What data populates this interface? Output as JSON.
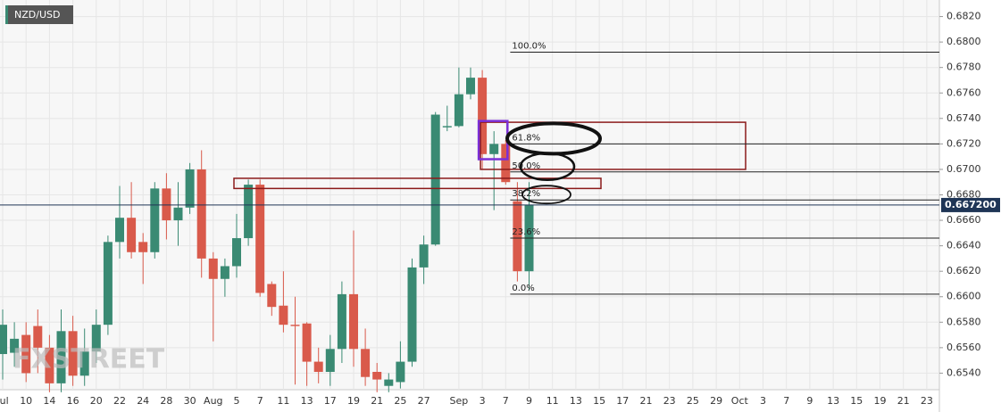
{
  "chart_data": {
    "type": "candlestick",
    "title": "NZD/USD",
    "watermark": "FXSTREET",
    "categories": [
      "Jul",
      null,
      "10",
      null,
      "14",
      null,
      "16",
      null,
      "20",
      null,
      "22",
      null,
      "24",
      null,
      "28",
      null,
      "30",
      null,
      "Aug",
      null,
      "5",
      null,
      "7",
      null,
      "11",
      null,
      "13",
      null,
      "17",
      null,
      "19",
      null,
      "21",
      null,
      "25",
      null,
      "27",
      null,
      null,
      "Sep",
      null,
      "3",
      null,
      "7",
      null,
      "9",
      null,
      "11",
      null,
      "13",
      null,
      "15",
      null,
      "17",
      null,
      "21",
      null,
      "23",
      null,
      "25",
      null,
      "29",
      null,
      "Oct",
      null,
      "3",
      null,
      "7",
      null,
      "9",
      null,
      "13",
      null,
      "15",
      null,
      "19",
      null,
      "21",
      null,
      "23"
    ],
    "open": [
      0.6555,
      0.6556,
      0.657,
      0.6577,
      0.656,
      0.6532,
      0.6573,
      0.6538,
      0.6557,
      0.6578,
      0.6643,
      0.6662,
      0.6643,
      0.6635,
      0.6685,
      0.666,
      0.667,
      0.67,
      0.663,
      0.6614,
      0.6624,
      0.6646,
      0.6688,
      0.661,
      0.6593,
      0.6578,
      0.6579,
      0.6549,
      0.6541,
      0.6559,
      0.6602,
      0.6559,
      0.6541,
      0.653,
      0.6533,
      0.6549,
      0.6623,
      0.6641,
      0.6733,
      0.6734,
      0.6759,
      0.6772,
      0.6712,
      0.672,
      0.6675,
      0.662,
      null,
      null,
      null,
      null,
      null,
      null,
      null,
      null,
      null,
      null,
      null,
      null,
      null,
      null,
      null,
      null,
      null,
      null,
      null,
      null,
      null,
      null,
      null,
      null,
      null,
      null,
      null,
      null,
      null,
      null,
      null,
      null,
      null,
      null
    ],
    "high": [
      0.659,
      0.658,
      0.658,
      0.659,
      0.657,
      0.659,
      0.6585,
      0.6575,
      0.659,
      0.6648,
      0.6687,
      0.669,
      0.665,
      0.669,
      0.6697,
      0.669,
      0.6705,
      0.6715,
      0.6635,
      0.663,
      0.6665,
      0.6692,
      0.6692,
      0.6612,
      0.662,
      0.66,
      0.658,
      0.656,
      0.657,
      0.6612,
      0.6652,
      0.6575,
      0.6548,
      0.654,
      0.6565,
      0.663,
      0.6648,
      0.6745,
      0.675,
      0.678,
      0.678,
      0.6778,
      0.673,
      0.6723,
      0.669,
      0.669,
      null,
      null,
      null,
      null,
      null,
      null,
      null,
      null,
      null,
      null,
      null,
      null,
      null,
      null,
      null,
      null,
      null,
      null,
      null,
      null,
      null,
      null,
      null,
      null,
      null,
      null,
      null,
      null,
      null,
      null,
      null,
      null,
      null,
      null
    ],
    "low": [
      0.6535,
      0.6545,
      0.6533,
      0.654,
      0.6525,
      0.6525,
      0.653,
      0.653,
      0.6548,
      0.657,
      0.663,
      0.663,
      0.661,
      0.663,
      0.6645,
      0.664,
      0.6665,
      0.6615,
      0.6565,
      0.66,
      0.6615,
      0.664,
      0.66,
      0.6585,
      0.6572,
      0.6531,
      0.653,
      0.6532,
      0.653,
      0.6548,
      0.6545,
      0.653,
      0.6525,
      0.6525,
      0.6528,
      0.6545,
      0.661,
      0.664,
      0.673,
      0.6733,
      0.6755,
      0.67,
      0.6668,
      0.6688,
      0.6612,
      0.6605,
      null,
      null,
      null,
      null,
      null,
      null,
      null,
      null,
      null,
      null,
      null,
      null,
      null,
      null,
      null,
      null,
      null,
      null,
      null,
      null,
      null,
      null,
      null,
      null,
      null,
      null,
      null,
      null,
      null,
      null,
      null,
      null,
      null,
      null
    ],
    "close": [
      0.6578,
      0.6567,
      0.654,
      0.656,
      0.6532,
      0.6573,
      0.6538,
      0.6557,
      0.6578,
      0.6643,
      0.6662,
      0.6635,
      0.6635,
      0.6685,
      0.666,
      0.667,
      0.67,
      0.663,
      0.6614,
      0.6624,
      0.6646,
      0.6688,
      0.6603,
      0.6592,
      0.6578,
      0.6577,
      0.6549,
      0.6541,
      0.6559,
      0.6602,
      0.6559,
      0.6537,
      0.6535,
      0.6535,
      0.6549,
      0.6623,
      0.6641,
      0.6743,
      0.6734,
      0.6759,
      0.6772,
      0.6712,
      0.672,
      0.669,
      0.662,
      0.6672,
      null,
      null,
      null,
      null,
      null,
      null,
      null,
      null,
      null,
      null,
      null,
      null,
      null,
      null,
      null,
      null,
      null,
      null,
      null,
      null,
      null,
      null,
      null,
      null,
      null,
      null,
      null,
      null,
      null,
      null,
      null,
      null,
      null,
      null
    ],
    "up_color": "#3a8a73",
    "down_color": "#d95a4b",
    "ylim": [
      0.6527,
      0.6833
    ],
    "yticks": [
      {
        "value": 0.654,
        "label": "0.6540"
      },
      {
        "value": 0.656,
        "label": "0.6560"
      },
      {
        "value": 0.658,
        "label": "0.6580"
      },
      {
        "value": 0.66,
        "label": "0.6600"
      },
      {
        "value": 0.662,
        "label": "0.6620"
      },
      {
        "value": 0.664,
        "label": "0.6640"
      },
      {
        "value": 0.666,
        "label": "0.6660"
      },
      {
        "value": 0.668,
        "label": "0.6680"
      },
      {
        "value": 0.67,
        "label": "0.6700"
      },
      {
        "value": 0.672,
        "label": "0.6720"
      },
      {
        "value": 0.674,
        "label": "0.6740"
      },
      {
        "value": 0.676,
        "label": "0.6760"
      },
      {
        "value": 0.678,
        "label": "0.6780"
      },
      {
        "value": 0.68,
        "label": "0.6800"
      },
      {
        "value": 0.682,
        "label": "0.6820"
      }
    ],
    "grid": true,
    "last_price": {
      "value": 0.6672,
      "label": "0.667200"
    },
    "fib_levels": [
      {
        "label": "100.0%",
        "value": 0.6792
      },
      {
        "label": "61.8%",
        "value": 0.672
      },
      {
        "label": "50.0%",
        "value": 0.6698
      },
      {
        "label": "38.2%",
        "value": 0.6676
      },
      {
        "label": "23.6%",
        "value": 0.6646
      },
      {
        "label": "0.0%",
        "value": 0.6602
      }
    ]
  }
}
